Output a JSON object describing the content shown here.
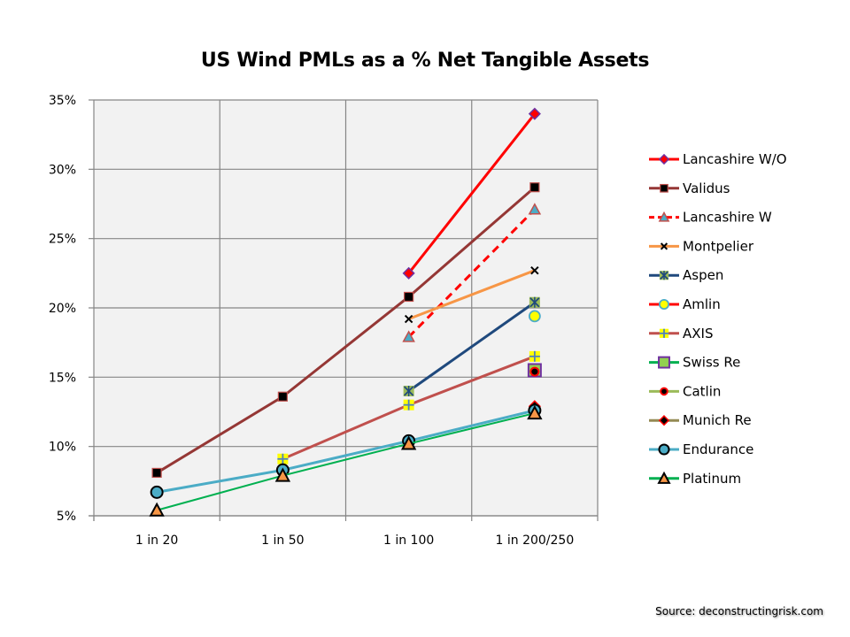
{
  "chart_data": {
    "type": "line",
    "title": "US Wind PMLs as a % Net Tangible Assets",
    "xlabel": "",
    "ylabel": "",
    "categories": [
      "1 in 20",
      "1 in 50",
      "1 in 100",
      "1 in 200/250"
    ],
    "ylim": [
      5,
      35
    ],
    "yticks": [
      5,
      10,
      15,
      20,
      25,
      30,
      35
    ],
    "ytick_labels": [
      "5%",
      "10%",
      "15%",
      "20%",
      "25%",
      "30%",
      "35%"
    ],
    "grid": true,
    "legend_position": "right",
    "series": [
      {
        "name": "Lancashire W/O",
        "values": [
          null,
          null,
          22.5,
          34.0
        ],
        "color": "#ff0000",
        "dash": false,
        "marker": "diamond",
        "marker_fill": "#ff0000",
        "marker_stroke": "#7030a0"
      },
      {
        "name": "Validus",
        "values": [
          8.1,
          13.6,
          20.8,
          28.7
        ],
        "color": "#953735",
        "dash": false,
        "marker": "square",
        "marker_fill": "#000000",
        "marker_stroke": "#c0504d"
      },
      {
        "name": "Lancashire W",
        "values": [
          null,
          null,
          17.9,
          27.1
        ],
        "color": "#ff0000",
        "dash": true,
        "marker": "triangle",
        "marker_fill": "#4bacc6",
        "marker_stroke": "#c0504d"
      },
      {
        "name": "Montpelier",
        "values": [
          null,
          null,
          19.2,
          22.7
        ],
        "color": "#f79646",
        "dash": false,
        "marker": "x",
        "marker_fill": "#f79646",
        "marker_stroke": "#000000"
      },
      {
        "name": "Aspen",
        "values": [
          null,
          null,
          14.0,
          20.4
        ],
        "color": "#1f497d",
        "dash": false,
        "marker": "star",
        "marker_fill": "#9bbb59",
        "marker_stroke": "#1f497d"
      },
      {
        "name": "Amlin",
        "values": [
          null,
          null,
          null,
          19.4
        ],
        "color": "#ff0000",
        "dash": false,
        "marker": "circle",
        "marker_fill": "#ffff00",
        "marker_stroke": "#4bacc6"
      },
      {
        "name": "AXIS",
        "values": [
          null,
          9.1,
          13.0,
          16.5
        ],
        "color": "#c0504d",
        "dash": false,
        "marker": "plus",
        "marker_fill": "#ffff00",
        "marker_stroke": "#4f81bd"
      },
      {
        "name": "Swiss Re",
        "values": [
          null,
          null,
          null,
          15.5
        ],
        "color": "#00b050",
        "dash": false,
        "marker": "square-big",
        "marker_fill": "#92d050",
        "marker_stroke": "#7030a0"
      },
      {
        "name": "Catlin",
        "values": [
          null,
          null,
          null,
          15.4
        ],
        "color": "#9bbb59",
        "dash": false,
        "marker": "dot",
        "marker_fill": "#000000",
        "marker_stroke": "#ff0000"
      },
      {
        "name": "Munich Re",
        "values": [
          null,
          null,
          null,
          12.9
        ],
        "color": "#948a54",
        "dash": false,
        "marker": "diamond",
        "marker_fill": "#000000",
        "marker_stroke": "#ff0000"
      },
      {
        "name": "Endurance",
        "values": [
          6.7,
          8.3,
          10.4,
          12.6
        ],
        "color": "#4bacc6",
        "dash": false,
        "marker": "circle-big",
        "marker_fill": "#4bacc6",
        "marker_stroke": "#000000"
      },
      {
        "name": "Platinum",
        "values": [
          5.4,
          7.9,
          10.2,
          12.4
        ],
        "color": "#00b050",
        "dash": false,
        "marker": "triangle-big",
        "marker_fill": "#f79646",
        "marker_stroke": "#000000"
      }
    ]
  },
  "source": "Source: deconstructingrisk.com"
}
